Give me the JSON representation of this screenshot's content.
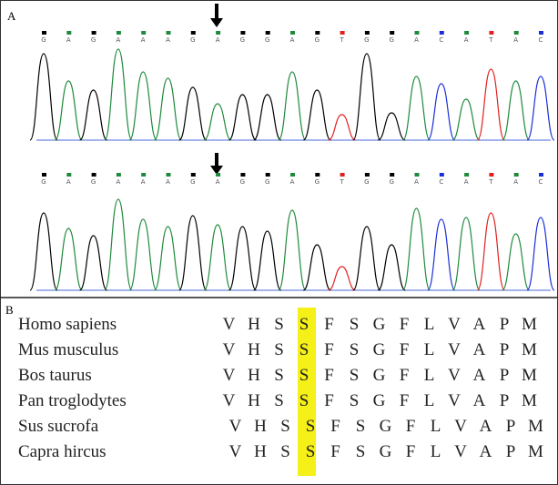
{
  "panel_a": {
    "label": "A",
    "base_colors": {
      "G": "#000000",
      "A": "#1e8a3c",
      "T": "#e02020",
      "C": "#1a2ed8"
    },
    "traces": [
      {
        "bases": [
          "G",
          "A",
          "G",
          "A",
          "A",
          "A",
          "G",
          "A",
          "G",
          "G",
          "A",
          "G",
          "T",
          "G",
          "G",
          "A",
          "C",
          "A",
          "T",
          "A",
          "C"
        ]
      },
      {
        "bases": [
          "G",
          "A",
          "G",
          "A",
          "A",
          "A",
          "G",
          "A",
          "G",
          "G",
          "A",
          "G",
          "T",
          "G",
          "G",
          "A",
          "C",
          "A",
          "T",
          "A",
          "C"
        ]
      }
    ]
  },
  "panel_b": {
    "label": "B",
    "rows": [
      {
        "species": "Homo sapiens",
        "sequence": [
          "V",
          "H",
          "S",
          "S",
          "F",
          "S",
          "G",
          "F",
          "L",
          "V",
          "A",
          "P",
          "M"
        ]
      },
      {
        "species": "Mus musculus",
        "sequence": [
          "V",
          "H",
          "S",
          "S",
          "F",
          "S",
          "G",
          "F",
          "L",
          "V",
          "A",
          "P",
          "M"
        ]
      },
      {
        "species": "Bos taurus",
        "sequence": [
          "V",
          "H",
          "S",
          "S",
          "F",
          "S",
          "G",
          "F",
          "L",
          "V",
          "A",
          "P",
          "M"
        ]
      },
      {
        "species": "Pan troglodytes",
        "sequence": [
          "V",
          "H",
          "S",
          "S",
          "F",
          "S",
          "G",
          "F",
          "L",
          "V",
          "A",
          "P",
          "M"
        ]
      },
      {
        "species": "Sus sucrofa",
        "sequence": [
          "V",
          "H",
          "S",
          "S",
          "F",
          "S",
          "G",
          "F",
          "L",
          "V",
          "A",
          "P",
          "M"
        ]
      },
      {
        "species": "Capra hircus",
        "sequence": [
          "V",
          "H",
          "S",
          "S",
          "F",
          "S",
          "G",
          "F",
          "L",
          "V",
          "A",
          "P",
          "M"
        ]
      }
    ]
  }
}
